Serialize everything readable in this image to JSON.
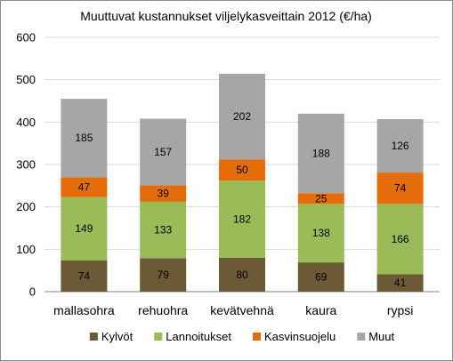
{
  "chart_data": {
    "type": "bar",
    "stacked": true,
    "title": "Muuttuvat  kustannukset viljelykasveittain 2012 (€/ha)",
    "categories": [
      "mallasohra",
      "rehuohra",
      "kevätvehnä",
      "kaura",
      "rypsi"
    ],
    "series": [
      {
        "name": "Kylvöt",
        "color": "#6b5a35",
        "values": [
          74,
          79,
          80,
          69,
          41
        ]
      },
      {
        "name": "Lannoitukset",
        "color": "#9bbb59",
        "values": [
          149,
          133,
          182,
          138,
          166
        ]
      },
      {
        "name": "Kasvinsuojelu",
        "color": "#e46c0a",
        "values": [
          47,
          39,
          50,
          25,
          74
        ]
      },
      {
        "name": "Muut",
        "color": "#a6a6a6",
        "values": [
          185,
          157,
          202,
          188,
          126
        ]
      }
    ],
    "ylim": [
      0,
      600
    ],
    "yticks": [
      0,
      100,
      200,
      300,
      400,
      500,
      600
    ],
    "grid": true,
    "legend": "bottom"
  }
}
